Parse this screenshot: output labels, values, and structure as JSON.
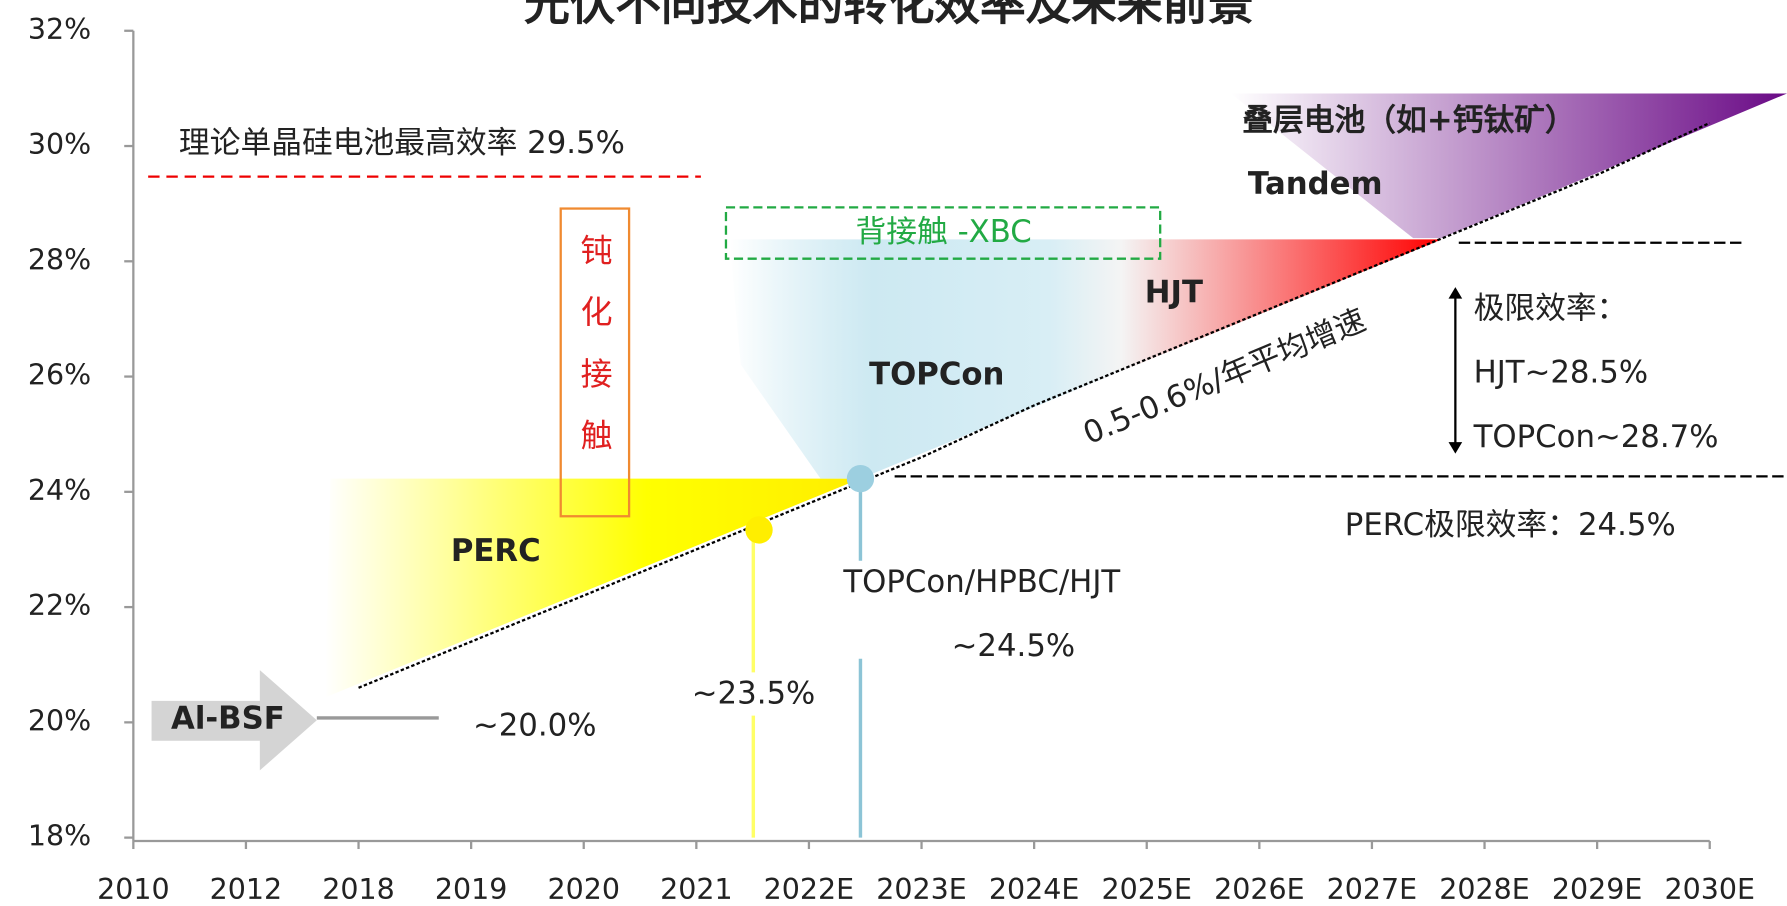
{
  "chart_data": {
    "type": "line",
    "title": "光伏不同技术的转化效率及未来前景",
    "categories": [
      "2010",
      "2012",
      "2018",
      "2019",
      "2020",
      "2021",
      "2022E",
      "2023E",
      "2024E",
      "2025E",
      "2026E",
      "2027E",
      "2028E",
      "2029E",
      "2030E"
    ],
    "series": [
      {
        "color": "#000000",
        "values": [
          null,
          null,
          20.6,
          21.4,
          22.2,
          23.0,
          23.8,
          24.6,
          25.5,
          26.3,
          27.1,
          27.9,
          28.7,
          29.5,
          30.4
        ]
      }
    ],
    "ylim": [
      18,
      32
    ],
    "yticks": [
      {
        "value": 18,
        "label": "18%"
      },
      {
        "value": 20,
        "label": "20%"
      },
      {
        "value": 22,
        "label": "22%"
      },
      {
        "value": 24,
        "label": "24%"
      },
      {
        "value": 26,
        "label": "26%"
      },
      {
        "value": 28,
        "label": "28%"
      },
      {
        "value": 30,
        "label": "30%"
      },
      {
        "value": 32,
        "label": "32%"
      }
    ],
    "annotations": {
      "theory": "理论单晶硅电池最高效率 29.5%",
      "passivation": "钝化接触",
      "xbc": "背接触 -XBC",
      "hjt": "HJT",
      "topcon": "TOPCon",
      "perc": "PERC",
      "albsf": "Al-BSF",
      "tandem_cn": "叠层电池（如+钙钛矿）",
      "tandem": "Tandem",
      "growth": "0.5-0.6%/年平均增速",
      "limit": "极限效率：",
      "limit_hjt": "HJT~28.5%",
      "limit_topcon": "TOPCon~28.7%",
      "limit_perc": "PERC极限效率：24.5%",
      "topcon_group": "TOPCon/HPBC/HJT",
      "topcon_value": "~24.5%",
      "perc_value": "~23.5%",
      "albsf_value": "~20.0%"
    }
  }
}
